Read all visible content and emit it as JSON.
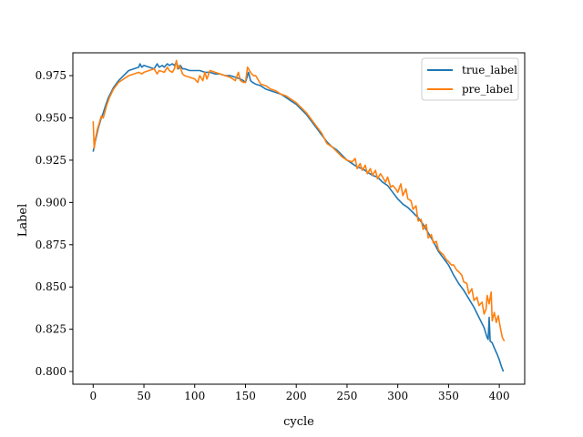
{
  "chart_data": {
    "type": "line",
    "title": "",
    "xlabel": "cycle",
    "ylabel": "Label",
    "xlim": [
      -20,
      425
    ],
    "ylim": [
      0.7925,
      0.9885
    ],
    "xticks": [
      0,
      50,
      100,
      150,
      200,
      250,
      300,
      350,
      400
    ],
    "yticks": [
      0.8,
      0.825,
      0.85,
      0.875,
      0.9,
      0.925,
      0.95,
      0.975
    ],
    "ytick_labels": [
      "0.800",
      "0.825",
      "0.850",
      "0.875",
      "0.900",
      "0.925",
      "0.950",
      "0.975"
    ],
    "grid": false,
    "legend_position": "top-right",
    "series": [
      {
        "name": "true_label",
        "color": "#1f77b4",
        "x": [
          0,
          2,
          5,
          8,
          10,
          12,
          15,
          20,
          25,
          30,
          35,
          40,
          45,
          46,
          48,
          50,
          55,
          60,
          63,
          65,
          68,
          70,
          73,
          75,
          78,
          80,
          82,
          84,
          86,
          88,
          90,
          95,
          100,
          105,
          110,
          115,
          120,
          125,
          130,
          135,
          140,
          145,
          148,
          150,
          153,
          155,
          157,
          160,
          165,
          170,
          175,
          180,
          185,
          190,
          195,
          200,
          205,
          210,
          215,
          220,
          225,
          230,
          235,
          240,
          245,
          250,
          255,
          260,
          265,
          270,
          275,
          280,
          285,
          290,
          295,
          300,
          305,
          310,
          315,
          320,
          325,
          330,
          335,
          340,
          345,
          350,
          355,
          360,
          365,
          370,
          375,
          380,
          385,
          388,
          389,
          390,
          391,
          393,
          395,
          398,
          400,
          402,
          404
        ],
        "y": [
          0.93,
          0.936,
          0.944,
          0.95,
          0.953,
          0.957,
          0.962,
          0.968,
          0.972,
          0.975,
          0.978,
          0.979,
          0.98,
          0.982,
          0.98,
          0.981,
          0.98,
          0.979,
          0.982,
          0.98,
          0.981,
          0.98,
          0.982,
          0.981,
          0.982,
          0.981,
          0.983,
          0.979,
          0.981,
          0.979,
          0.979,
          0.978,
          0.978,
          0.978,
          0.977,
          0.977,
          0.976,
          0.976,
          0.975,
          0.975,
          0.974,
          0.973,
          0.972,
          0.971,
          0.977,
          0.972,
          0.971,
          0.97,
          0.969,
          0.967,
          0.966,
          0.965,
          0.964,
          0.962,
          0.96,
          0.958,
          0.955,
          0.952,
          0.948,
          0.944,
          0.94,
          0.936,
          0.933,
          0.931,
          0.928,
          0.925,
          0.923,
          0.921,
          0.92,
          0.918,
          0.916,
          0.915,
          0.912,
          0.91,
          0.906,
          0.902,
          0.899,
          0.897,
          0.894,
          0.891,
          0.887,
          0.882,
          0.877,
          0.871,
          0.867,
          0.863,
          0.857,
          0.852,
          0.848,
          0.843,
          0.838,
          0.832,
          0.826,
          0.82,
          0.819,
          0.832,
          0.818,
          0.817,
          0.814,
          0.81,
          0.807,
          0.803,
          0.8
        ]
      },
      {
        "name": "pre_label",
        "color": "#ff7f0e",
        "x": [
          0,
          1,
          2,
          4,
          6,
          8,
          10,
          13,
          16,
          20,
          25,
          30,
          35,
          40,
          45,
          48,
          50,
          55,
          60,
          63,
          65,
          70,
          73,
          75,
          78,
          80,
          82,
          83,
          85,
          88,
          90,
          95,
          100,
          103,
          105,
          108,
          110,
          112,
          115,
          120,
          125,
          130,
          135,
          140,
          143,
          145,
          148,
          150,
          152,
          154,
          156,
          158,
          160,
          163,
          165,
          170,
          175,
          180,
          185,
          190,
          195,
          200,
          205,
          210,
          215,
          220,
          225,
          230,
          235,
          240,
          245,
          250,
          255,
          258,
          260,
          263,
          265,
          268,
          270,
          273,
          275,
          278,
          280,
          283,
          285,
          288,
          290,
          293,
          295,
          298,
          300,
          303,
          305,
          308,
          310,
          313,
          315,
          318,
          320,
          323,
          325,
          328,
          330,
          333,
          335,
          338,
          340,
          343,
          345,
          348,
          350,
          353,
          355,
          358,
          360,
          363,
          365,
          368,
          370,
          373,
          375,
          378,
          380,
          383,
          385,
          387,
          388,
          390,
          392,
          393,
          395,
          397,
          399,
          401,
          403,
          405
        ],
        "y": [
          0.948,
          0.932,
          0.937,
          0.943,
          0.947,
          0.951,
          0.95,
          0.957,
          0.962,
          0.967,
          0.971,
          0.973,
          0.975,
          0.976,
          0.977,
          0.976,
          0.977,
          0.978,
          0.979,
          0.976,
          0.978,
          0.977,
          0.98,
          0.978,
          0.977,
          0.979,
          0.984,
          0.979,
          0.981,
          0.976,
          0.975,
          0.974,
          0.973,
          0.971,
          0.975,
          0.972,
          0.977,
          0.973,
          0.978,
          0.977,
          0.976,
          0.975,
          0.974,
          0.972,
          0.977,
          0.972,
          0.971,
          0.971,
          0.98,
          0.978,
          0.976,
          0.975,
          0.975,
          0.972,
          0.97,
          0.969,
          0.967,
          0.966,
          0.964,
          0.963,
          0.961,
          0.959,
          0.956,
          0.953,
          0.949,
          0.945,
          0.941,
          0.935,
          0.933,
          0.93,
          0.927,
          0.925,
          0.924,
          0.926,
          0.92,
          0.923,
          0.919,
          0.922,
          0.917,
          0.92,
          0.916,
          0.919,
          0.914,
          0.917,
          0.915,
          0.912,
          0.915,
          0.909,
          0.91,
          0.908,
          0.906,
          0.911,
          0.904,
          0.908,
          0.902,
          0.901,
          0.896,
          0.898,
          0.889,
          0.89,
          0.884,
          0.887,
          0.879,
          0.881,
          0.876,
          0.877,
          0.872,
          0.87,
          0.869,
          0.866,
          0.865,
          0.863,
          0.863,
          0.86,
          0.859,
          0.857,
          0.853,
          0.852,
          0.846,
          0.849,
          0.842,
          0.844,
          0.839,
          0.841,
          0.834,
          0.837,
          0.845,
          0.84,
          0.847,
          0.83,
          0.835,
          0.829,
          0.833,
          0.826,
          0.82,
          0.818
        ]
      }
    ]
  }
}
